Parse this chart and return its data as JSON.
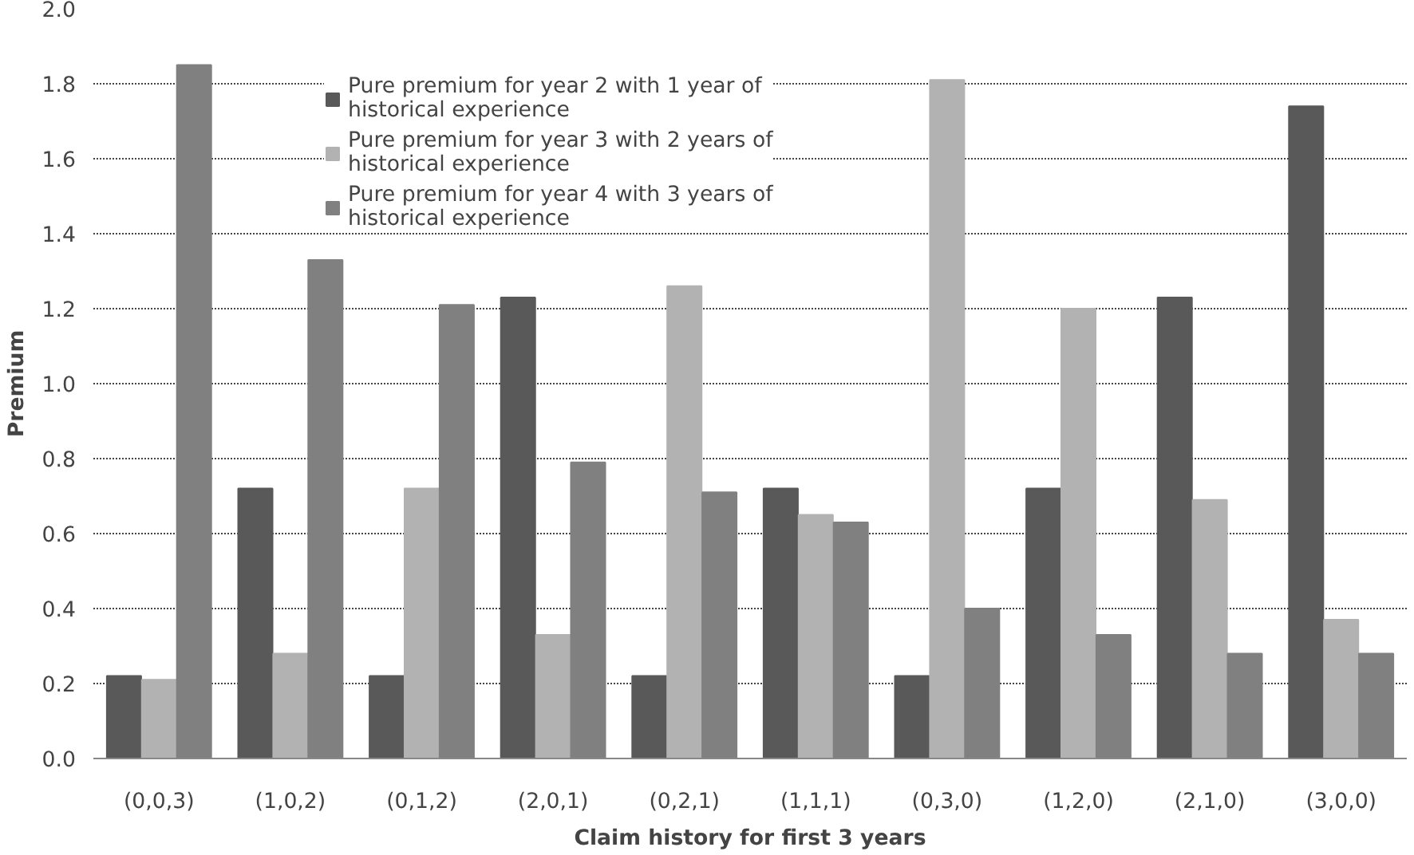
{
  "chart_data": {
    "type": "bar",
    "xlabel": "Claim history for first 3 years",
    "ylabel": "Premium",
    "categories": [
      "(0,0,3)",
      "(1,0,2)",
      "(0,1,2)",
      "(2,0,1)",
      "(0,2,1)",
      "(1,1,1)",
      "(0,3,0)",
      "(1,2,0)",
      "(2,1,0)",
      "(3,0,0)"
    ],
    "series": [
      {
        "name": "Pure premium for year 2 with 1 year of historical experience",
        "color": "#595959",
        "values": [
          0.22,
          0.72,
          0.22,
          1.23,
          0.22,
          0.72,
          0.22,
          0.72,
          1.23,
          1.74
        ]
      },
      {
        "name": "Pure premium for year 3 with 2 years of historical experience",
        "color": "#b2b2b2",
        "values": [
          0.21,
          0.28,
          0.72,
          0.33,
          1.26,
          0.65,
          1.81,
          1.2,
          0.69,
          0.37
        ]
      },
      {
        "name": "Pure premium for year 4 with 3 years of historical experience",
        "color": "#808080",
        "values": [
          1.85,
          1.33,
          1.21,
          0.79,
          0.71,
          0.63,
          0.4,
          0.33,
          0.28,
          0.28
        ]
      }
    ],
    "ylim": [
      0,
      2.0
    ],
    "yticks": [
      {
        "value": 0,
        "label": "0.0"
      },
      {
        "value": 0.2,
        "label": "0.2"
      },
      {
        "value": 0.4,
        "label": "0.4"
      },
      {
        "value": 0.6,
        "label": "0.6"
      },
      {
        "value": 0.8,
        "label": "0.8"
      },
      {
        "value": 1.0,
        "label": "1.0"
      },
      {
        "value": 1.2,
        "label": "1.2"
      },
      {
        "value": 1.4,
        "label": "1.4"
      },
      {
        "value": 1.6,
        "label": "1.6"
      },
      {
        "value": 1.8,
        "label": "1.8"
      },
      {
        "value": 2.0,
        "label": "2.0"
      }
    ],
    "grid": "y",
    "legend": "top"
  }
}
